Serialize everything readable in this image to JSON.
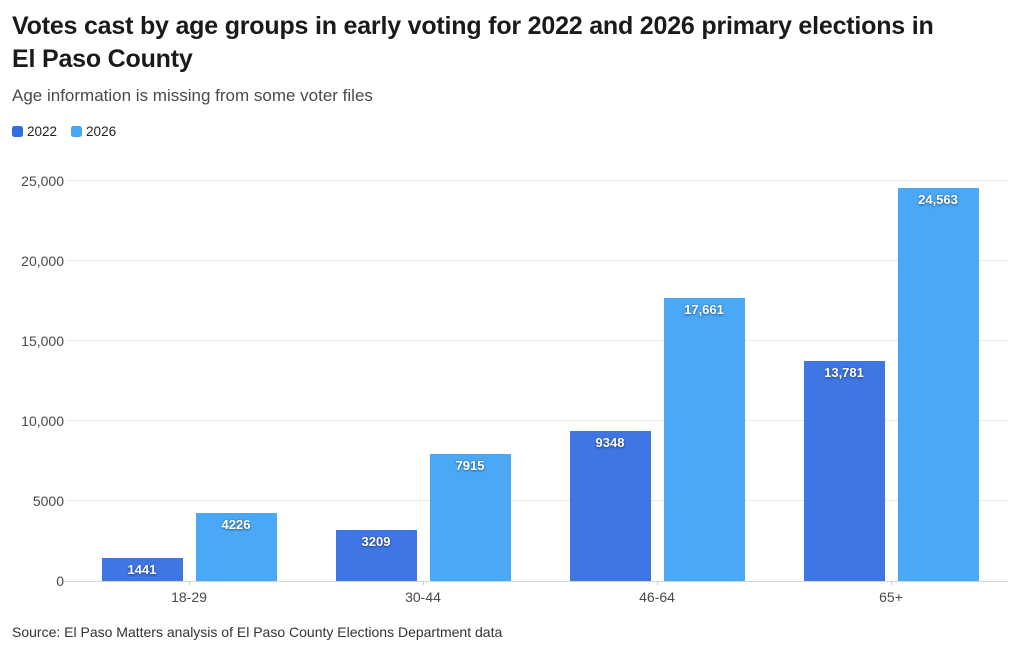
{
  "header": {
    "title": "Votes cast by age groups in early voting for 2022 and 2026 primary elections in El Paso County",
    "subtitle": "Age information is missing from some voter files"
  },
  "legend": {
    "items": [
      {
        "label": "2022",
        "color": "#2f6fe0"
      },
      {
        "label": "2026",
        "color": "#45a7f6"
      }
    ]
  },
  "chart_data": {
    "type": "bar",
    "title": "Votes cast by age groups in early voting for 2022 and 2026 primary elections in El Paso County",
    "subtitle": "Age information is missing from some voter files",
    "categories": [
      "18-29",
      "30-44",
      "46-64",
      "65+"
    ],
    "series": [
      {
        "name": "2022",
        "color": "#3f76e3",
        "values": [
          1441,
          3209,
          9348,
          13781
        ],
        "labels": [
          "1441",
          "3209",
          "9348",
          "13,781"
        ]
      },
      {
        "name": "2026",
        "color": "#4aa8f7",
        "values": [
          4226,
          7915,
          17661,
          24563
        ],
        "labels": [
          "4226",
          "7915",
          "17,661",
          "24,563"
        ]
      }
    ],
    "xlabel": "",
    "ylabel": "",
    "ylim": [
      0,
      25000
    ],
    "y_ticks": [
      {
        "value": 0,
        "label": "0"
      },
      {
        "value": 5000,
        "label": "5000"
      },
      {
        "value": 10000,
        "label": "10,000"
      },
      {
        "value": 15000,
        "label": "15,000"
      },
      {
        "value": 20000,
        "label": "20,000"
      },
      {
        "value": 25000,
        "label": "25,000"
      }
    ],
    "grid": true,
    "legend_position": "top-left",
    "value_labels": "inside-top"
  },
  "footer": {
    "source": "Source: El Paso Matters analysis of El Paso County Elections Department data"
  }
}
